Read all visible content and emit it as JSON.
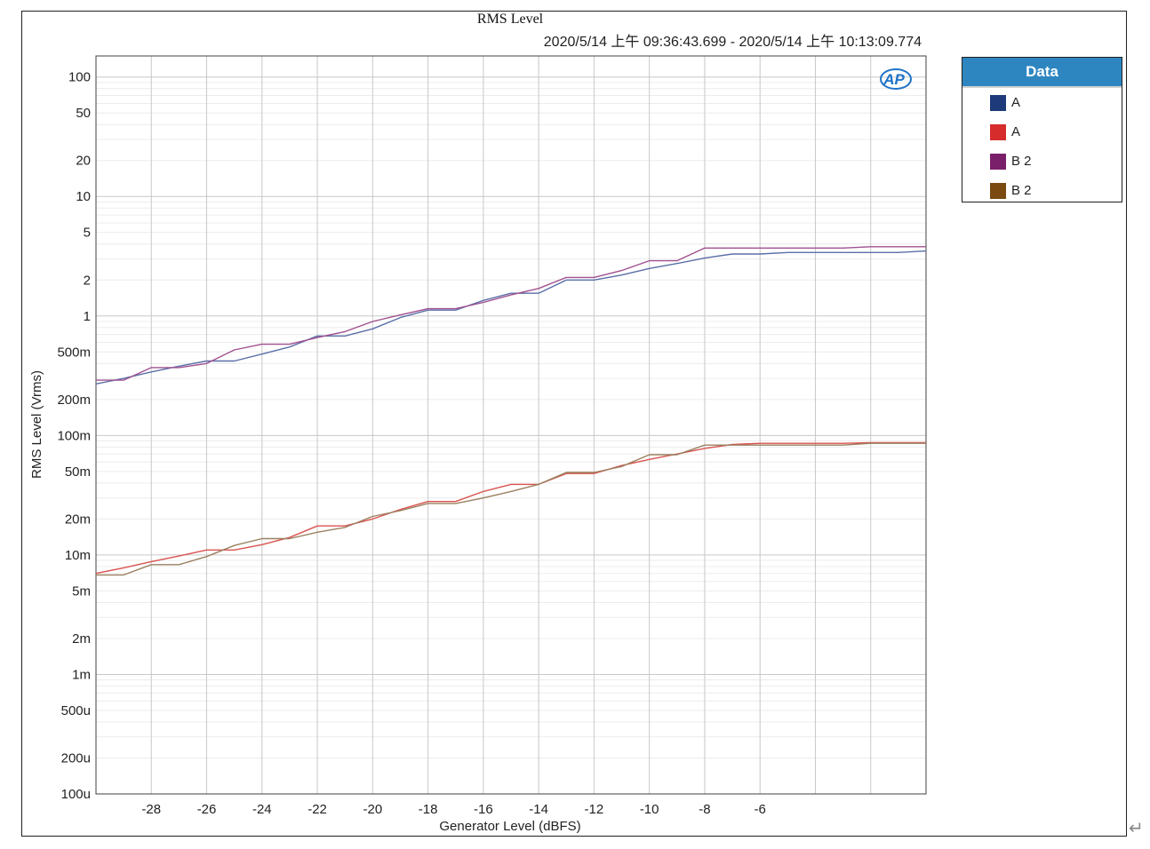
{
  "chart_data": {
    "type": "line",
    "title": "RMS Level",
    "subtitle": "2020/5/14 上午 09:36:43.699 - 2020/5/14 上午 10:13:09.774",
    "xlabel": "Generator Level (dBFS)",
    "ylabel": "RMS Level (Vrms)",
    "xlim": [
      -30,
      0
    ],
    "ylim": [
      0.0001,
      150
    ],
    "y_scale": "log",
    "grid": true,
    "legend_placement": "right",
    "x_ticks": [
      -28,
      -26,
      -24,
      -22,
      -20,
      -18,
      -16,
      -14,
      -12,
      -10,
      -8,
      -6
    ],
    "x_tick_labels": [
      "-28",
      "-26",
      "-24",
      "-22",
      "-20",
      "-18",
      "-16",
      "-14",
      "-12",
      "-10",
      "-8",
      "-6"
    ],
    "y_ticks": [
      100,
      50,
      20,
      10,
      5,
      2,
      1,
      0.5,
      0.2,
      0.1,
      0.05,
      0.02,
      0.01,
      0.005,
      0.002,
      0.001,
      0.0005,
      0.0002,
      0.0001
    ],
    "y_tick_labels": [
      "100",
      "50",
      "20",
      "10",
      "5",
      "2",
      "1",
      "500m",
      "200m",
      "100m",
      "50m",
      "20m",
      "10m",
      "5m",
      "2m",
      "1m",
      "500u",
      "200u",
      "100u"
    ],
    "x": [
      -30,
      -29,
      -28,
      -27,
      -26,
      -25,
      -24,
      -23,
      -22,
      -21,
      -20,
      -19,
      -18,
      -17,
      -16,
      -15,
      -14,
      -13,
      -12,
      -11,
      -10,
      -9,
      -8,
      -7,
      -6,
      -5,
      -4,
      -3,
      -2,
      -1,
      0
    ],
    "series": [
      {
        "name": "A",
        "color": "#5b6fa8",
        "values": [
          0.27,
          0.3,
          0.34,
          0.38,
          0.42,
          0.42,
          0.48,
          0.55,
          0.68,
          0.68,
          0.78,
          0.97,
          1.12,
          1.12,
          1.35,
          1.55,
          1.55,
          2.0,
          2.0,
          2.2,
          2.5,
          2.75,
          3.05,
          3.3,
          3.3,
          3.4,
          3.4,
          3.4,
          3.4,
          3.4,
          3.5
        ]
      },
      {
        "name": "A",
        "color": "#d9534f",
        "values": [
          0.007,
          0.0078,
          0.0088,
          0.0098,
          0.011,
          0.011,
          0.0122,
          0.014,
          0.0175,
          0.0175,
          0.02,
          0.024,
          0.028,
          0.028,
          0.034,
          0.039,
          0.039,
          0.048,
          0.048,
          0.056,
          0.063,
          0.07,
          0.078,
          0.084,
          0.086,
          0.086,
          0.086,
          0.086,
          0.087,
          0.087,
          0.087
        ]
      },
      {
        "name": "B 2",
        "color": "#a0508f",
        "values": [
          0.29,
          0.29,
          0.37,
          0.37,
          0.4,
          0.52,
          0.58,
          0.58,
          0.66,
          0.74,
          0.9,
          1.02,
          1.15,
          1.15,
          1.3,
          1.5,
          1.7,
          2.1,
          2.1,
          2.4,
          2.9,
          2.9,
          3.7,
          3.7,
          3.7,
          3.7,
          3.7,
          3.7,
          3.8,
          3.8,
          3.8
        ]
      },
      {
        "name": "B 2",
        "color": "#9a8060",
        "values": [
          0.0068,
          0.0068,
          0.0083,
          0.0083,
          0.0097,
          0.012,
          0.0137,
          0.0137,
          0.0155,
          0.017,
          0.021,
          0.0235,
          0.027,
          0.027,
          0.03,
          0.034,
          0.039,
          0.049,
          0.049,
          0.055,
          0.069,
          0.069,
          0.083,
          0.083,
          0.083,
          0.083,
          0.083,
          0.083,
          0.086,
          0.086,
          0.086
        ]
      }
    ]
  },
  "legend": {
    "header": "Data",
    "items": [
      {
        "label": "A",
        "color": "#1f3a7a"
      },
      {
        "label": "A",
        "color": "#d62c2c"
      },
      {
        "label": "B 2",
        "color": "#7a1f6a"
      },
      {
        "label": "B 2",
        "color": "#7a4a10"
      }
    ]
  },
  "logo": {
    "text": "AP",
    "color": "#1e73c8",
    "icon": "ap-logo-icon"
  }
}
